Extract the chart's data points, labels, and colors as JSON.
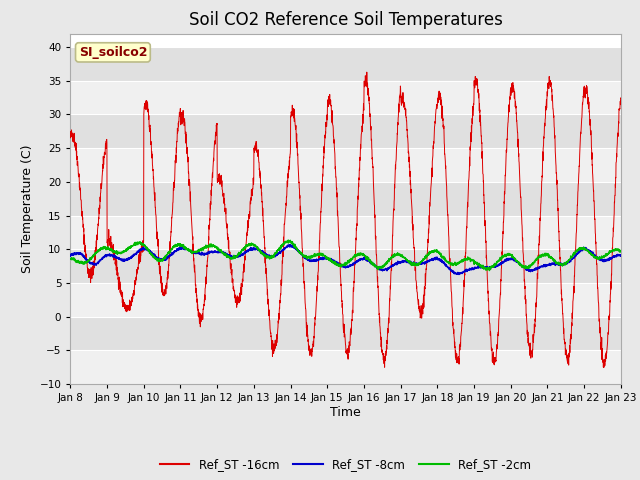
{
  "title": "Soil CO2 Reference Soil Temperatures",
  "xlabel": "Time",
  "ylabel": "Soil Temperature (C)",
  "ylim": [
    -10,
    42
  ],
  "yticks": [
    -10,
    -5,
    0,
    5,
    10,
    15,
    20,
    25,
    30,
    35,
    40
  ],
  "n_days": 15,
  "day_labels": [
    "Jan 8",
    "Jan 9",
    "Jan 10",
    "Jan 11",
    "Jan 12",
    "Jan 13",
    "Jan 14",
    "Jan 15",
    "Jan 16",
    "Jan 17",
    "Jan 18",
    "Jan 19",
    "Jan 20",
    "Jan 21",
    "Jan 22",
    "Jan 23"
  ],
  "series_colors": [
    "#dd0000",
    "#0000cc",
    "#00bb00"
  ],
  "legend_labels": [
    "Ref_ST -16cm",
    "Ref_ST -8cm",
    "Ref_ST -2cm"
  ],
  "annotation_text": "SI_soilco2",
  "annotation_color": "#880000",
  "annotation_bg": "#ffffcc",
  "annotation_border": "#bbbb88",
  "fig_bg": "#e8e8e8",
  "plot_bg": "#ffffff",
  "band_colors": [
    "#f0f0f0",
    "#e0e0e0"
  ],
  "title_fontsize": 12,
  "label_fontsize": 9,
  "tick_fontsize": 7.5,
  "red_peaks": [
    27,
    11,
    31.5,
    29.5,
    20.5,
    25,
    30.5,
    32,
    35,
    32.5,
    33,
    35,
    34,
    35,
    33.5
  ],
  "red_troughs": [
    6,
    1,
    3.5,
    -0.5,
    2,
    -5,
    -5.5,
    -5.5,
    -6.5,
    0.5,
    -6.5,
    -7,
    -5.5,
    -6.5,
    -7
  ],
  "blue_pts_x": [
    0,
    0.3,
    0.7,
    1.0,
    1.5,
    2.0,
    2.5,
    3.0,
    3.5,
    4.0,
    4.5,
    5.0,
    5.5,
    6.0,
    6.5,
    7.0,
    7.5,
    8.0,
    8.5,
    9.0,
    9.5,
    10.0,
    10.5,
    11.0,
    11.5,
    12.0,
    12.5,
    13.0,
    13.5,
    14.0,
    14.5,
    15.0
  ],
  "blue_pts_y": [
    8.5,
    9.5,
    8.0,
    8.5,
    9.0,
    9.5,
    9.0,
    9.5,
    10.0,
    9.0,
    9.5,
    9.5,
    9.5,
    10.0,
    9.0,
    8.0,
    8.0,
    8.0,
    7.5,
    7.5,
    8.5,
    8.0,
    7.0,
    6.5,
    8.0,
    8.0,
    7.5,
    7.0,
    8.5,
    9.5,
    9.0,
    8.5
  ],
  "green_pts_x": [
    0,
    0.5,
    1.0,
    1.5,
    2.0,
    2.5,
    3.0,
    3.5,
    4.0,
    4.5,
    5.0,
    5.5,
    6.0,
    6.5,
    7.0,
    7.5,
    8.0,
    8.5,
    9.0,
    9.5,
    10.0,
    10.5,
    11.0,
    11.5,
    12.0,
    12.5,
    13.0,
    13.5,
    14.0,
    14.5,
    15.0
  ],
  "green_pts_y": [
    8.0,
    9.0,
    9.5,
    10.5,
    10.0,
    9.0,
    10.0,
    10.5,
    9.5,
    9.5,
    10.0,
    9.5,
    10.5,
    9.5,
    8.0,
    8.5,
    8.5,
    8.0,
    8.5,
    8.5,
    9.0,
    8.5,
    7.5,
    8.0,
    8.5,
    8.0,
    8.5,
    8.5,
    9.5,
    9.5,
    9.0
  ]
}
